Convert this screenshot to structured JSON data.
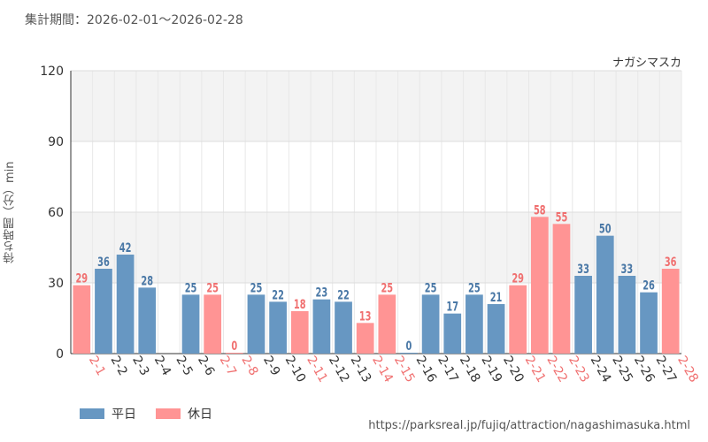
{
  "period_text": "集計期間：2026-02-01～2026-02-28",
  "source_url": "https://parksreal.jp/fujiq/attraction/nagashimasuka.html",
  "colors": {
    "weekday": "#6797c2",
    "holiday": "#ff9494",
    "weekday_label": "#4a78a6",
    "holiday_label": "#f07070"
  },
  "chart_data": {
    "type": "bar",
    "title": "ナガシマスカ",
    "xlabel": "",
    "ylabel": "待ち時間（分）min",
    "ylim": [
      0,
      120
    ],
    "yticks": [
      0,
      30,
      60,
      90,
      120
    ],
    "categories": [
      "2-1",
      "2-2",
      "2-3",
      "2-4",
      "2-5",
      "2-6",
      "2-7",
      "2-8",
      "2-9",
      "2-10",
      "2-11",
      "2-12",
      "2-13",
      "2-14",
      "2-15",
      "2-16",
      "2-17",
      "2-18",
      "2-19",
      "2-20",
      "2-21",
      "2-22",
      "2-23",
      "2-24",
      "2-25",
      "2-26",
      "2-27",
      "2-28"
    ],
    "values": [
      29,
      36,
      42,
      28,
      null,
      25,
      25,
      0,
      25,
      22,
      18,
      23,
      22,
      13,
      25,
      0,
      25,
      17,
      25,
      21,
      29,
      58,
      55,
      33,
      50,
      33,
      26,
      36
    ],
    "day_type": [
      "holiday",
      "weekday",
      "weekday",
      "weekday",
      "weekday",
      "weekday",
      "holiday",
      "holiday",
      "weekday",
      "weekday",
      "holiday",
      "weekday",
      "weekday",
      "holiday",
      "holiday",
      "weekday",
      "weekday",
      "weekday",
      "weekday",
      "weekday",
      "holiday",
      "holiday",
      "holiday",
      "weekday",
      "weekday",
      "weekday",
      "weekday",
      "holiday"
    ],
    "legend": [
      {
        "key": "weekday",
        "label": "平日"
      },
      {
        "key": "holiday",
        "label": "休日"
      }
    ],
    "legend_position": "bottom-left"
  }
}
